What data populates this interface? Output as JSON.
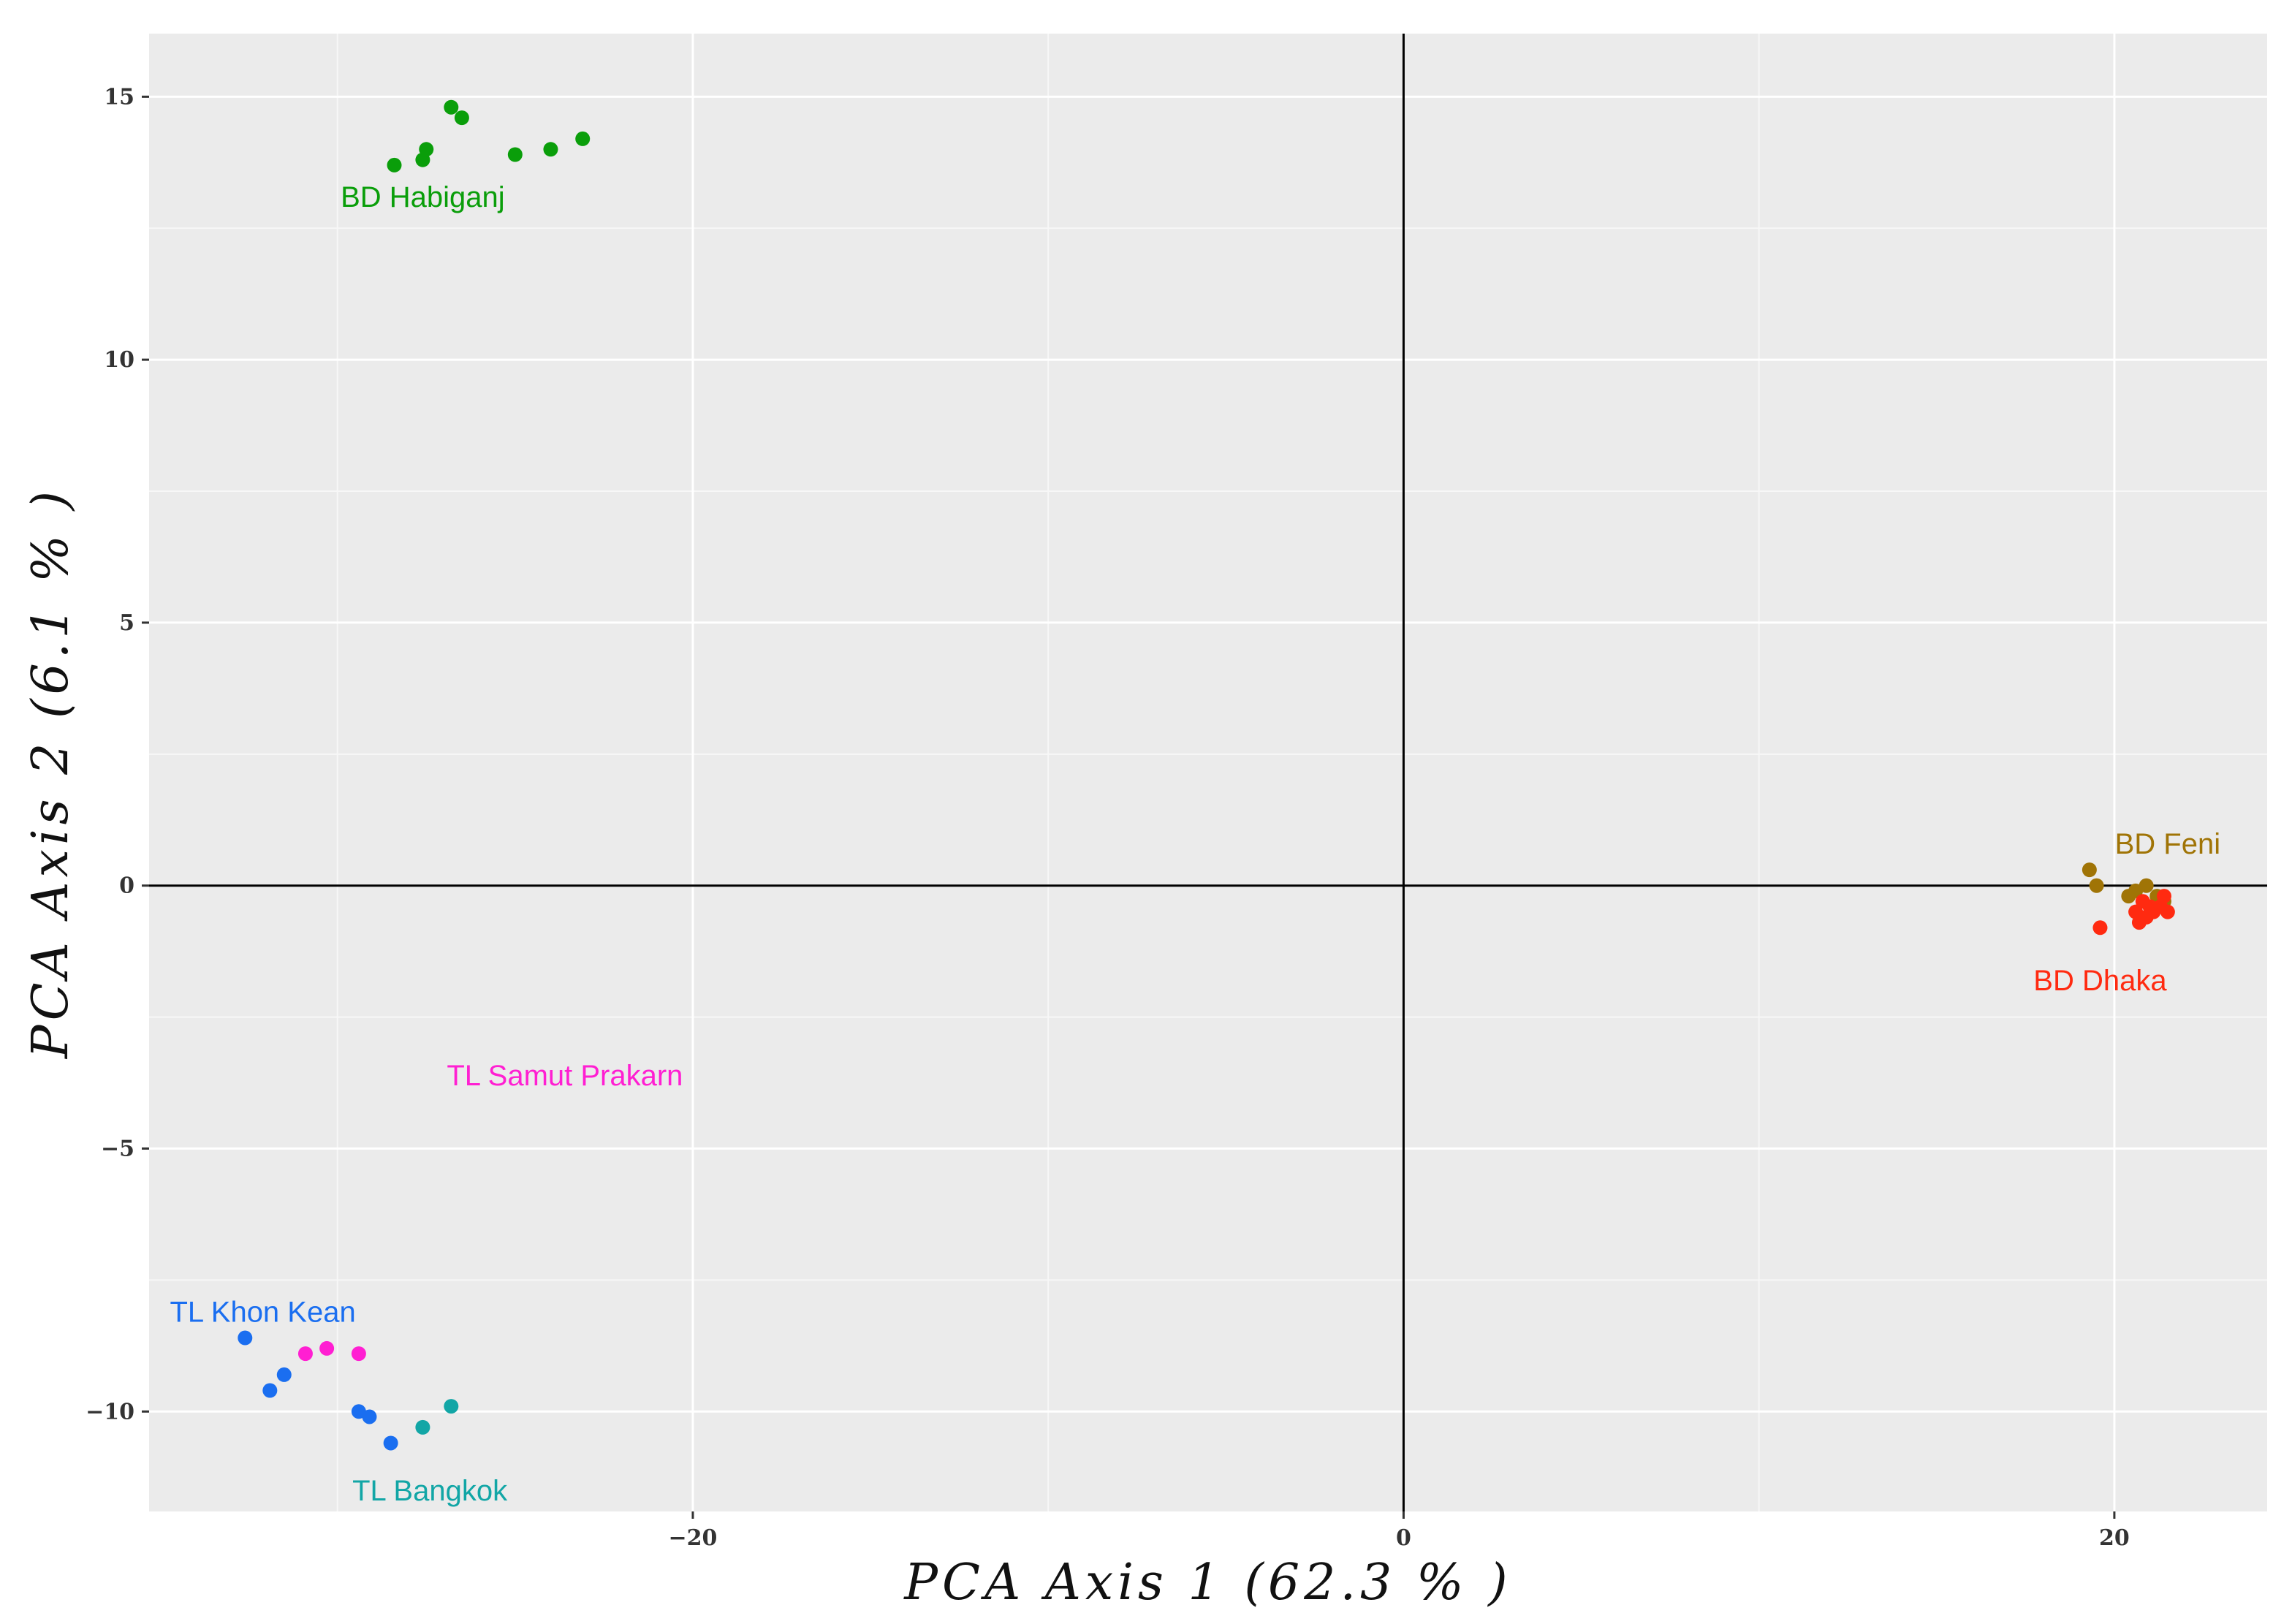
{
  "chart_data": {
    "type": "scatter",
    "title": "",
    "xlabel": "PCA Axis 1 (62.3 % )",
    "ylabel": "PCA Axis 2 (6.1 % )",
    "xlim": [
      -35.3,
      24.3
    ],
    "ylim": [
      -11.9,
      16.2
    ],
    "xticks": [
      -20,
      0,
      20
    ],
    "xtick_labels": [
      "−20",
      "0",
      "20"
    ],
    "yticks": [
      -10,
      -5,
      0,
      5,
      10,
      15
    ],
    "ytick_labels": [
      "−10",
      "−5",
      "0",
      "5",
      "10",
      "15"
    ],
    "x_minor_gridlines": [
      -30,
      -10,
      10
    ],
    "y_minor_gridlines": [
      -7.5,
      -2.5,
      2.5,
      7.5,
      12.5
    ],
    "grid": true,
    "reference_lines": {
      "x": 0,
      "y": 0
    },
    "background_color": "#ebebeb",
    "legend": "none",
    "series": [
      {
        "name": "BD Habiganj",
        "color": "#0a9e0a",
        "label_anchor": {
          "x": -27.6,
          "y": 13.1
        },
        "points": [
          {
            "x": -28.4,
            "y": 13.7
          },
          {
            "x": -27.6,
            "y": 13.8
          },
          {
            "x": -27.5,
            "y": 14.0
          },
          {
            "x": -26.8,
            "y": 14.8
          },
          {
            "x": -26.5,
            "y": 14.6
          },
          {
            "x": -25.0,
            "y": 13.9
          },
          {
            "x": -24.0,
            "y": 14.0
          },
          {
            "x": -23.1,
            "y": 14.2
          }
        ]
      },
      {
        "name": "TL Samut Prakarn",
        "color": "#ff1fd2",
        "label_anchor": {
          "x": -23.6,
          "y": -3.6
        },
        "points": [
          {
            "x": -30.9,
            "y": -8.9
          },
          {
            "x": -30.3,
            "y": -8.8
          },
          {
            "x": -29.4,
            "y": -8.9
          }
        ]
      },
      {
        "name": "TL Khon Kean",
        "color": "#1a6ef0",
        "label_anchor": {
          "x": -32.1,
          "y": -8.1
        },
        "points": [
          {
            "x": -32.6,
            "y": -8.6
          },
          {
            "x": -31.9,
            "y": -9.6
          },
          {
            "x": -31.5,
            "y": -9.3
          },
          {
            "x": -29.4,
            "y": -10.0
          },
          {
            "x": -29.1,
            "y": -10.1
          },
          {
            "x": -28.5,
            "y": -10.6
          }
        ]
      },
      {
        "name": "TL Bangkok",
        "color": "#12a6a6",
        "label_anchor": {
          "x": -27.4,
          "y": -11.5
        },
        "points": [
          {
            "x": -27.6,
            "y": -10.3
          },
          {
            "x": -26.8,
            "y": -9.9
          }
        ]
      },
      {
        "name": "BD Feni",
        "color": "#a07406",
        "label_anchor": {
          "x": 21.5,
          "y": 0.8
        },
        "points": [
          {
            "x": 19.3,
            "y": 0.3
          },
          {
            "x": 19.5,
            "y": 0.0
          },
          {
            "x": 20.4,
            "y": -0.2
          },
          {
            "x": 20.6,
            "y": -0.1
          },
          {
            "x": 20.9,
            "y": 0.0
          },
          {
            "x": 21.2,
            "y": -0.2
          },
          {
            "x": 21.4,
            "y": -0.3
          }
        ]
      },
      {
        "name": "BD Dhaka",
        "color": "#ff2a10",
        "label_anchor": {
          "x": 19.6,
          "y": -1.8
        },
        "points": [
          {
            "x": 19.6,
            "y": -0.8
          },
          {
            "x": 20.6,
            "y": -0.5
          },
          {
            "x": 20.7,
            "y": -0.7
          },
          {
            "x": 20.9,
            "y": -0.6
          },
          {
            "x": 21.0,
            "y": -0.4
          },
          {
            "x": 21.1,
            "y": -0.5
          },
          {
            "x": 21.3,
            "y": -0.4
          },
          {
            "x": 21.4,
            "y": -0.2
          },
          {
            "x": 21.5,
            "y": -0.5
          },
          {
            "x": 20.8,
            "y": -0.3
          }
        ]
      }
    ]
  }
}
